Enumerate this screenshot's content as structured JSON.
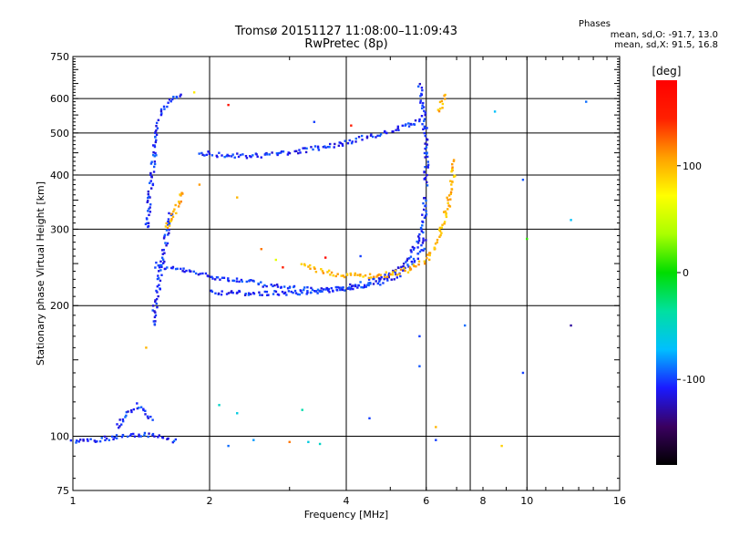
{
  "header": {
    "title_line1": "Tromsø 20151127 11:08:00–11:09:43",
    "title_line2": "RwPretec (8p)"
  },
  "phase_stats": {
    "heading": "Phases",
    "o_line": "mean, sd,O: -91.7, 13.0",
    "x_line": "mean, sd,X:  91.5, 16.8"
  },
  "chart_data": {
    "type": "scatter",
    "xlabel": "Frequency [MHz]",
    "ylabel": "Stationary phase Virtual Height [km]",
    "xscale": "log",
    "yscale": "log",
    "xlim": [
      1,
      16
    ],
    "ylim": [
      75,
      750
    ],
    "xticks": [
      1,
      2,
      4,
      6,
      8,
      10,
      16
    ],
    "xtick_labels": [
      "1",
      "2",
      "4",
      "6",
      "8",
      "10",
      "16"
    ],
    "xgrid_lines": [
      2,
      4,
      6,
      7.5,
      10
    ],
    "yticks": [
      75,
      100,
      200,
      300,
      400,
      500,
      600,
      750
    ],
    "ytick_labels": [
      "75",
      "100",
      "200",
      "300",
      "400",
      "500",
      "600",
      "750"
    ],
    "ygrid_lines": [
      100,
      200,
      300,
      400,
      500,
      600
    ],
    "grid": true,
    "colorbar": {
      "label": "[deg]",
      "range": [
        -180,
        180
      ],
      "ticks": [
        100,
        0,
        -100
      ],
      "tick_labels": [
        "100",
        "0",
        "-100"
      ],
      "colors": [
        "#000000",
        "#3a0060",
        "#1a1aff",
        "#00bfff",
        "#00e0a0",
        "#00dd00",
        "#aaff00",
        "#ffff00",
        "#ffa000",
        "#ff2000",
        "#ff0000"
      ]
    },
    "series": [
      {
        "mode": "O",
        "color_deg": -105,
        "segments": [
          {
            "x": [
              1.52,
              1.53,
              1.55,
              1.58,
              1.62,
              1.68,
              1.75,
              1.85,
              2.0,
              2.2,
              2.5,
              2.8,
              3.2,
              3.7,
              4.2,
              4.7,
              5.2,
              5.6,
              5.85,
              6.0
            ],
            "y": [
              250,
              247,
              246,
              245,
              244,
              243,
              241,
              238,
              234,
              230,
              226,
              221,
              218,
              217,
              220,
              225,
              234,
              250,
              268,
              290
            ]
          },
          {
            "x": [
              2.0,
              2.5,
              3.0,
              3.5,
              4.0,
              4.5,
              5.0,
              5.4,
              5.7,
              5.9,
              6.0
            ],
            "y": [
              215,
              213,
              214,
              216,
              220,
              226,
              236,
              252,
              272,
              300,
              360
            ]
          },
          {
            "x": [
              6.0,
              6.0,
              5.95,
              5.9,
              5.85,
              5.8
            ],
            "y": [
              380,
              450,
              520,
              580,
              620,
              650
            ]
          },
          {
            "x": [
              1.5,
              1.52,
              1.55,
              1.6,
              1.65
            ],
            "y": [
              180,
              200,
              230,
              280,
              330
            ]
          },
          {
            "x": [
              1.45,
              1.48,
              1.5,
              1.52,
              1.55
            ],
            "y": [
              300,
              360,
              420,
              480,
              540
            ]
          },
          {
            "x": [
              1.55,
              1.6,
              1.65,
              1.7,
              1.75
            ],
            "y": [
              550,
              580,
              600,
              610,
              615
            ]
          },
          {
            "x": [
              1.9,
              2.1,
              2.4,
              2.7,
              3.0,
              3.3,
              3.6,
              4.0,
              4.5,
              5.0,
              5.5,
              5.9
            ],
            "y": [
              450,
              445,
              442,
              445,
              450,
              458,
              465,
              475,
              490,
              505,
              520,
              540
            ]
          },
          {
            "x": [
              1.0,
              1.1,
              1.2,
              1.3,
              1.4,
              1.5,
              1.6,
              1.7
            ],
            "y": [
              97,
              98,
              99,
              100,
              101,
              100,
              99,
              97
            ]
          },
          {
            "x": [
              1.25,
              1.3,
              1.35,
              1.4,
              1.45,
              1.5
            ],
            "y": [
              105,
              110,
              115,
              118,
              112,
              108
            ]
          }
        ]
      },
      {
        "mode": "X",
        "color_deg": 100,
        "segments": [
          {
            "x": [
              3.2,
              3.5,
              4.0,
              4.5,
              5.0,
              5.5,
              6.0,
              6.3,
              6.5,
              6.7,
              6.85,
              6.95
            ],
            "y": [
              248,
              240,
              235,
              234,
              236,
              242,
              255,
              275,
              305,
              340,
              390,
              440
            ]
          },
          {
            "x": [
              6.4,
              6.5,
              6.6,
              6.7
            ],
            "y": [
              560,
              590,
              610,
              620
            ]
          },
          {
            "x": [
              1.6,
              1.65,
              1.7,
              1.75
            ],
            "y": [
              300,
              320,
              340,
              370
            ]
          }
        ]
      }
    ],
    "scattered_points": [
      {
        "x": 5.8,
        "y": 170,
        "deg": -100
      },
      {
        "x": 5.8,
        "y": 145,
        "deg": -95
      },
      {
        "x": 7.3,
        "y": 180,
        "deg": -90
      },
      {
        "x": 9.8,
        "y": 140,
        "deg": -100
      },
      {
        "x": 12.5,
        "y": 180,
        "deg": -130
      },
      {
        "x": 9.8,
        "y": 390,
        "deg": -95
      },
      {
        "x": 12.5,
        "y": 315,
        "deg": -70
      },
      {
        "x": 8.8,
        "y": 95,
        "deg": 90
      },
      {
        "x": 13.5,
        "y": 590,
        "deg": -90
      },
      {
        "x": 8.5,
        "y": 560,
        "deg": -70
      },
      {
        "x": 10.0,
        "y": 285,
        "deg": 10
      },
      {
        "x": 4.5,
        "y": 110,
        "deg": -100
      },
      {
        "x": 6.3,
        "y": 105,
        "deg": 100
      },
      {
        "x": 6.3,
        "y": 98,
        "deg": -100
      },
      {
        "x": 3.0,
        "y": 97,
        "deg": 120
      },
      {
        "x": 3.5,
        "y": 96,
        "deg": -50
      },
      {
        "x": 3.3,
        "y": 97,
        "deg": -60
      },
      {
        "x": 2.2,
        "y": 95,
        "deg": -90
      },
      {
        "x": 2.5,
        "y": 98,
        "deg": -80
      },
      {
        "x": 2.3,
        "y": 113,
        "deg": -60
      },
      {
        "x": 2.1,
        "y": 118,
        "deg": -50
      },
      {
        "x": 3.2,
        "y": 115,
        "deg": -40
      },
      {
        "x": 2.2,
        "y": 580,
        "deg": 160
      },
      {
        "x": 2.6,
        "y": 270,
        "deg": 120
      },
      {
        "x": 2.9,
        "y": 245,
        "deg": 150
      },
      {
        "x": 3.6,
        "y": 258,
        "deg": 170
      },
      {
        "x": 4.3,
        "y": 260,
        "deg": -100
      },
      {
        "x": 4.1,
        "y": 520,
        "deg": 150
      },
      {
        "x": 3.4,
        "y": 530,
        "deg": -100
      },
      {
        "x": 1.9,
        "y": 380,
        "deg": 110
      },
      {
        "x": 1.85,
        "y": 620,
        "deg": 80
      },
      {
        "x": 1.45,
        "y": 160,
        "deg": 100
      },
      {
        "x": 2.3,
        "y": 355,
        "deg": 100
      },
      {
        "x": 2.8,
        "y": 255,
        "deg": 60
      }
    ]
  }
}
